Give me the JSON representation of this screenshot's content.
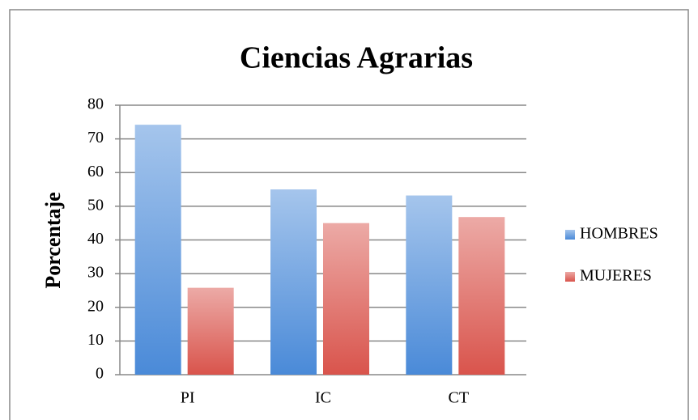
{
  "chart_data": {
    "type": "bar",
    "title": "Ciencias Agrarias",
    "y_label": "Porcentaje",
    "categories": [
      "PI",
      "IC",
      "CT"
    ],
    "series": [
      {
        "name": "HOMBRES",
        "color": "#4a8ad8",
        "values": [
          74.2,
          55,
          53.2
        ]
      },
      {
        "name": "MUJERES",
        "color": "#d9544c",
        "values": [
          25.8,
          45,
          46.8
        ]
      }
    ],
    "ylim": [
      0,
      80
    ],
    "yticks": [
      0,
      10,
      20,
      30,
      40,
      50,
      60,
      70,
      80
    ],
    "grid": true,
    "legend": "right"
  }
}
